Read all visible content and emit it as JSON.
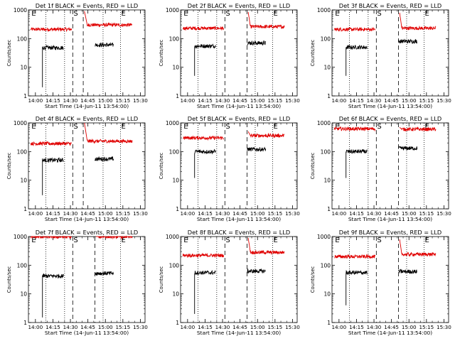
{
  "figure": {
    "colors": {
      "events": "#000000",
      "lld": "#e00000",
      "axis": "#000000",
      "marker": "#000000"
    },
    "xlabel": "Start Time (14-Jun-11 13:54:00)",
    "ylabel": "Counts/sec"
  },
  "chart_data": [
    {
      "type": "line",
      "title": "Det 1f BLACK = Events, RED = LLD",
      "xlabel": "Start Time (14-Jun-11 13:54:00)",
      "ylabel": "Counts/sec",
      "x_ticks": [
        "14:00",
        "14:15",
        "14:30",
        "14:45",
        "15:00",
        "15:15",
        "15:30"
      ],
      "y_ticks": [
        "1",
        "10",
        "100",
        "1000"
      ],
      "yscale": "log",
      "ylim": [
        1,
        1000
      ],
      "markers": [
        {
          "x": "13:56",
          "label": "E"
        },
        {
          "x": "14:32",
          "label": "S"
        },
        {
          "x": "15:13",
          "label": "E"
        }
      ],
      "dashed_lines": [
        "14:32",
        "14:41"
      ],
      "dotted_lines": [
        "14:09",
        "14:25",
        "14:58",
        "15:13"
      ],
      "series": [
        {
          "name": "LLD",
          "segments": [
            {
              "x": [
                "13:56",
                "14:31"
              ],
              "level": 210
            },
            {
              "x": [
                "14:42",
                "15:23"
              ],
              "level": 300,
              "start_spike": 900
            }
          ]
        },
        {
          "name": "Events",
          "segments": [
            {
              "x": [
                "14:06",
                "14:24"
              ],
              "level": 48,
              "start_dip": 2
            },
            {
              "x": [
                "14:51",
                "15:07"
              ],
              "level": 60
            }
          ]
        }
      ]
    },
    {
      "type": "line",
      "title": "Det 2f BLACK = Events, RED = LLD",
      "xlabel": "Start Time (14-Jun-11 13:54:00)",
      "ylabel": "Counts/sec",
      "x_ticks": [
        "14:00",
        "14:15",
        "14:30",
        "14:45",
        "15:00",
        "15:15",
        "15:30"
      ],
      "y_ticks": [
        "1",
        "10",
        "100",
        "1000"
      ],
      "yscale": "log",
      "ylim": [
        1,
        1000
      ],
      "markers": [
        {
          "x": "13:56",
          "label": "E"
        },
        {
          "x": "14:32",
          "label": "S"
        },
        {
          "x": "15:13",
          "label": "E"
        }
      ],
      "dashed_lines": [
        "14:32",
        "14:51"
      ],
      "dotted_lines": [
        "14:09",
        "14:25",
        "14:58",
        "15:13"
      ],
      "series": [
        {
          "name": "LLD",
          "segments": [
            {
              "x": [
                "13:56",
                "14:31"
              ],
              "level": 230
            },
            {
              "x": [
                "14:52",
                "15:23"
              ],
              "level": 260,
              "start_spike": 850
            }
          ]
        },
        {
          "name": "Events",
          "segments": [
            {
              "x": [
                "14:06",
                "14:24"
              ],
              "level": 55,
              "start_dip": 5
            },
            {
              "x": [
                "14:51",
                "15:07"
              ],
              "level": 70
            }
          ]
        }
      ]
    },
    {
      "type": "line",
      "title": "Det 3f BLACK = Events, RED = LLD",
      "xlabel": "Start Time (14-Jun-11 13:54:00)",
      "ylabel": "Counts/sec",
      "x_ticks": [
        "14:00",
        "14:15",
        "14:30",
        "14:45",
        "15:00",
        "15:15",
        "15:30"
      ],
      "y_ticks": [
        "1",
        "10",
        "100",
        "1000"
      ],
      "yscale": "log",
      "ylim": [
        1,
        1000
      ],
      "markers": [
        {
          "x": "13:56",
          "label": "E"
        },
        {
          "x": "14:32",
          "label": "S"
        },
        {
          "x": "15:13",
          "label": "E"
        }
      ],
      "dashed_lines": [
        "14:32",
        "14:51"
      ],
      "dotted_lines": [
        "14:09",
        "14:25",
        "14:58",
        "15:13"
      ],
      "series": [
        {
          "name": "LLD",
          "segments": [
            {
              "x": [
                "13:56",
                "14:31"
              ],
              "level": 210
            },
            {
              "x": [
                "14:52",
                "15:23"
              ],
              "level": 230,
              "start_spike": 800
            }
          ]
        },
        {
          "name": "Events",
          "segments": [
            {
              "x": [
                "14:06",
                "14:24"
              ],
              "level": 50,
              "start_dip": 5
            },
            {
              "x": [
                "14:51",
                "15:07"
              ],
              "level": 80
            }
          ]
        }
      ]
    },
    {
      "type": "line",
      "title": "Det 4f BLACK = Events, RED = LLD",
      "xlabel": "Start Time (14-Jun-11 13:54:00)",
      "ylabel": "Counts/sec",
      "x_ticks": [
        "14:00",
        "14:15",
        "14:30",
        "14:45",
        "15:00",
        "15:15",
        "15:30"
      ],
      "y_ticks": [
        "1",
        "10",
        "100",
        "1000"
      ],
      "yscale": "log",
      "ylim": [
        1,
        1000
      ],
      "markers": [
        {
          "x": "13:56",
          "label": "E"
        },
        {
          "x": "14:32",
          "label": "S"
        },
        {
          "x": "15:13",
          "label": "E"
        }
      ],
      "dashed_lines": [
        "14:32",
        "14:41"
      ],
      "dotted_lines": [
        "14:09",
        "14:25",
        "14:58",
        "15:13"
      ],
      "series": [
        {
          "name": "LLD",
          "segments": [
            {
              "x": [
                "13:56",
                "14:31"
              ],
              "level": 190
            },
            {
              "x": [
                "14:42",
                "15:23"
              ],
              "level": 230,
              "start_spike": 1000
            }
          ]
        },
        {
          "name": "Events",
          "segments": [
            {
              "x": [
                "14:06",
                "14:24"
              ],
              "level": 50,
              "start_dip": 3
            },
            {
              "x": [
                "14:51",
                "15:07"
              ],
              "level": 55
            }
          ]
        }
      ]
    },
    {
      "type": "line",
      "title": "Det 5f BLACK = Events, RED = LLD",
      "xlabel": "Start Time (14-Jun-11 13:54:00)",
      "ylabel": "Counts/sec",
      "x_ticks": [
        "14:00",
        "14:15",
        "14:30",
        "14:45",
        "15:00",
        "15:15",
        "15:30"
      ],
      "y_ticks": [
        "1",
        "10",
        "100",
        "1000"
      ],
      "yscale": "log",
      "ylim": [
        1,
        1000
      ],
      "markers": [
        {
          "x": "13:56",
          "label": "E"
        },
        {
          "x": "14:32",
          "label": "S"
        },
        {
          "x": "15:13",
          "label": "E"
        }
      ],
      "dashed_lines": [
        "14:32",
        "14:51"
      ],
      "dotted_lines": [
        "14:09",
        "14:25",
        "14:58",
        "15:13"
      ],
      "series": [
        {
          "name": "LLD",
          "segments": [
            {
              "x": [
                "13:56",
                "14:31"
              ],
              "level": 300
            },
            {
              "x": [
                "14:52",
                "15:23"
              ],
              "level": 360,
              "start_spike": 500
            }
          ]
        },
        {
          "name": "Events",
          "segments": [
            {
              "x": [
                "14:06",
                "14:24"
              ],
              "level": 100,
              "start_dip": 12
            },
            {
              "x": [
                "14:51",
                "15:07"
              ],
              "level": 120
            }
          ]
        }
      ]
    },
    {
      "type": "line",
      "title": "Det 6f BLACK = Events, RED = LLD",
      "xlabel": "Start Time (14-Jun-11 13:54:00)",
      "ylabel": "Counts/sec",
      "x_ticks": [
        "14:00",
        "14:15",
        "14:30",
        "14:45",
        "15:00",
        "15:15",
        "15:30"
      ],
      "y_ticks": [
        "1",
        "10",
        "100",
        "1000"
      ],
      "yscale": "log",
      "ylim": [
        1,
        1000
      ],
      "markers": [
        {
          "x": "13:56",
          "label": "E"
        },
        {
          "x": "14:32",
          "label": "S"
        },
        {
          "x": "15:13",
          "label": "E"
        }
      ],
      "dashed_lines": [
        "14:32",
        "14:51"
      ],
      "dotted_lines": [
        "14:09",
        "14:25",
        "14:58",
        "15:13"
      ],
      "series": [
        {
          "name": "LLD",
          "segments": [
            {
              "x": [
                "13:56",
                "14:31"
              ],
              "level": 620
            },
            {
              "x": [
                "14:52",
                "15:23"
              ],
              "level": 600,
              "start_spike": 700
            }
          ]
        },
        {
          "name": "Events",
          "segments": [
            {
              "x": [
                "14:06",
                "14:24"
              ],
              "level": 100,
              "start_dip": 12
            },
            {
              "x": [
                "14:51",
                "15:07"
              ],
              "level": 130
            }
          ]
        }
      ]
    },
    {
      "type": "line",
      "title": "Det 7f BLACK = Events, RED = LLD",
      "xlabel": "Start Time (14-Jun-11 13:54:00)",
      "ylabel": "Counts/sec",
      "x_ticks": [
        "14:00",
        "14:15",
        "14:30",
        "14:45",
        "15:00",
        "15:15",
        "15:30"
      ],
      "y_ticks": [
        "1",
        "10",
        "100",
        "1000"
      ],
      "yscale": "log",
      "ylim": [
        1,
        1000
      ],
      "markers": [
        {
          "x": "13:56",
          "label": "E"
        },
        {
          "x": "14:32",
          "label": "S"
        },
        {
          "x": "15:13",
          "label": "E"
        }
      ],
      "dashed_lines": [
        "14:32",
        "14:51"
      ],
      "dotted_lines": [
        "14:09",
        "14:25",
        "14:58",
        "15:13"
      ],
      "series": [
        {
          "name": "LLD",
          "segments": [
            {
              "x": [
                "13:56",
                "14:31"
              ],
              "level": 980
            },
            {
              "x": [
                "14:52",
                "15:23"
              ],
              "level": 1000,
              "start_spike": 1000
            }
          ]
        },
        {
          "name": "Events",
          "segments": [
            {
              "x": [
                "14:06",
                "14:24"
              ],
              "level": 42,
              "start_dip": 1.5
            },
            {
              "x": [
                "14:51",
                "15:07"
              ],
              "level": 52
            }
          ]
        }
      ]
    },
    {
      "type": "line",
      "title": "Det 8f BLACK = Events, RED = LLD",
      "xlabel": "Start Time (14-Jun-11 13:54:00)",
      "ylabel": "Counts/sec",
      "x_ticks": [
        "14:00",
        "14:15",
        "14:30",
        "14:45",
        "15:00",
        "15:15",
        "15:30"
      ],
      "y_ticks": [
        "1",
        "10",
        "100",
        "1000"
      ],
      "yscale": "log",
      "ylim": [
        1,
        1000
      ],
      "markers": [
        {
          "x": "13:56",
          "label": "E"
        },
        {
          "x": "14:32",
          "label": "S"
        },
        {
          "x": "15:13",
          "label": "E"
        }
      ],
      "dashed_lines": [
        "14:32",
        "14:51"
      ],
      "dotted_lines": [
        "14:09",
        "14:25",
        "14:58",
        "15:13"
      ],
      "series": [
        {
          "name": "LLD",
          "segments": [
            {
              "x": [
                "13:56",
                "14:31"
              ],
              "level": 220
            },
            {
              "x": [
                "14:52",
                "15:23"
              ],
              "level": 280,
              "start_spike": 900
            }
          ]
        },
        {
          "name": "Events",
          "segments": [
            {
              "x": [
                "14:06",
                "14:24"
              ],
              "level": 55,
              "start_dip": 2
            },
            {
              "x": [
                "14:51",
                "15:07"
              ],
              "level": 62
            }
          ]
        }
      ]
    },
    {
      "type": "line",
      "title": "Det 9f BLACK = Events, RED = LLD",
      "xlabel": "Start Time (14-Jun-11 13:54:00)",
      "ylabel": "Counts/sec",
      "x_ticks": [
        "14:00",
        "14:15",
        "14:30",
        "14:45",
        "15:00",
        "15:15",
        "15:30"
      ],
      "y_ticks": [
        "1",
        "10",
        "100",
        "1000"
      ],
      "yscale": "log",
      "ylim": [
        1,
        1000
      ],
      "markers": [
        {
          "x": "13:56",
          "label": "E"
        },
        {
          "x": "14:32",
          "label": "S"
        },
        {
          "x": "15:13",
          "label": "E"
        }
      ],
      "dashed_lines": [
        "14:32",
        "14:51"
      ],
      "dotted_lines": [
        "14:09",
        "14:25",
        "14:58",
        "15:13"
      ],
      "series": [
        {
          "name": "LLD",
          "segments": [
            {
              "x": [
                "13:56",
                "14:31"
              ],
              "level": 200
            },
            {
              "x": [
                "14:52",
                "15:23"
              ],
              "level": 240,
              "start_spike": 800
            }
          ]
        },
        {
          "name": "Events",
          "segments": [
            {
              "x": [
                "14:06",
                "14:24"
              ],
              "level": 55,
              "start_dip": 4
            },
            {
              "x": [
                "14:51",
                "15:07"
              ],
              "level": 60
            }
          ]
        }
      ]
    }
  ]
}
